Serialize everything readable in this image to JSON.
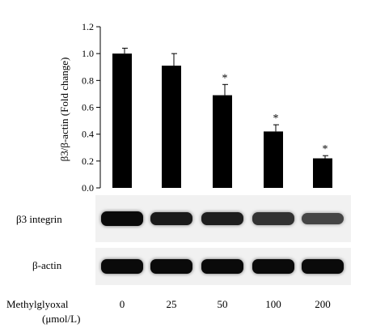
{
  "chart_data": {
    "type": "bar",
    "categories": [
      "0",
      "25",
      "50",
      "100",
      "200"
    ],
    "values": [
      1.0,
      0.91,
      0.69,
      0.42,
      0.22
    ],
    "errors": [
      0.04,
      0.09,
      0.08,
      0.05,
      0.02
    ],
    "significance": [
      "",
      "",
      "*",
      "*",
      "*"
    ],
    "ylabel": "β3/β-actin (Fold change)",
    "ylim": [
      0,
      1.2
    ],
    "yticks": [
      "0.0",
      "0.2",
      "0.4",
      "0.6",
      "0.8",
      "1.0",
      "1.2"
    ],
    "grid": false,
    "bar_color": "#000000"
  },
  "blot": {
    "rows": [
      {
        "label": "β3 integrin",
        "intensity": [
          1.0,
          0.82,
          0.78,
          0.55,
          0.35
        ]
      },
      {
        "label": "β-actin",
        "intensity": [
          1.0,
          1.0,
          1.0,
          1.0,
          1.0
        ]
      }
    ],
    "treatment_name": "Methylglyoxal",
    "treatment_unit": "(μmol/L)",
    "doses": [
      "0",
      "25",
      "50",
      "100",
      "200"
    ]
  }
}
